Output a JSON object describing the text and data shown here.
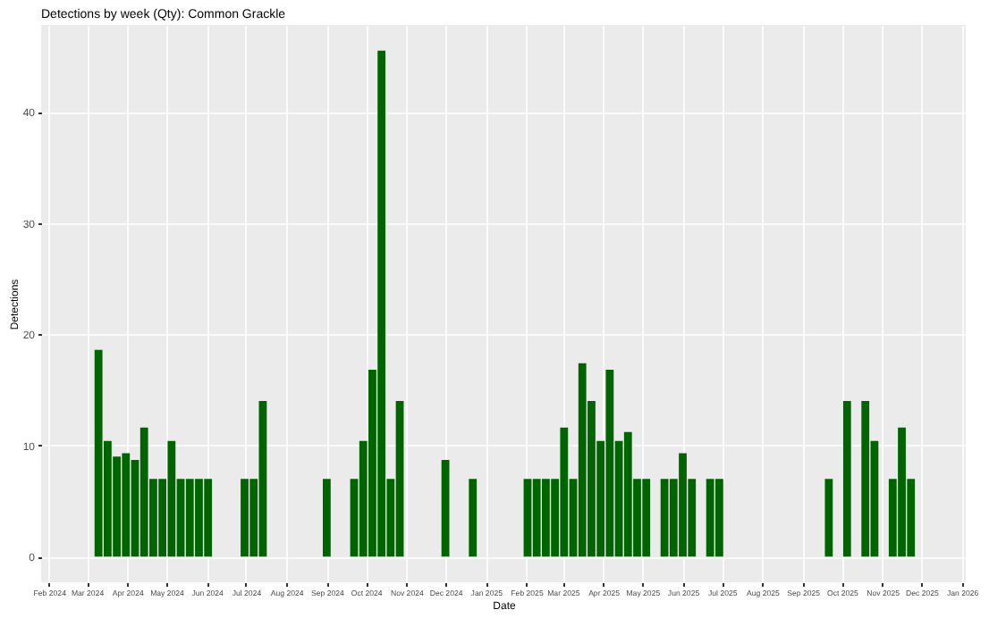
{
  "chart_data": {
    "type": "bar",
    "title": "Detections by week (Qty): Common Grackle",
    "xlabel": "Date",
    "ylabel": "Detections",
    "x": [
      "2024-03-10",
      "2024-03-17",
      "2024-03-24",
      "2024-03-31",
      "2024-04-07",
      "2024-04-14",
      "2024-04-21",
      "2024-04-28",
      "2024-05-05",
      "2024-05-12",
      "2024-05-19",
      "2024-05-26",
      "2024-06-02",
      "2024-06-30",
      "2024-07-07",
      "2024-07-14",
      "2024-09-01",
      "2024-09-22",
      "2024-09-29",
      "2024-10-06",
      "2024-10-13",
      "2024-10-20",
      "2024-10-27",
      "2024-12-01",
      "2024-12-22",
      "2025-02-02",
      "2025-02-09",
      "2025-02-16",
      "2025-02-23",
      "2025-03-02",
      "2025-03-09",
      "2025-03-16",
      "2025-03-23",
      "2025-03-30",
      "2025-04-06",
      "2025-04-13",
      "2025-04-20",
      "2025-04-27",
      "2025-05-04",
      "2025-05-18",
      "2025-05-25",
      "2025-06-01",
      "2025-06-08",
      "2025-06-22",
      "2025-06-29",
      "2025-09-21",
      "2025-10-05",
      "2025-10-19",
      "2025-10-26",
      "2025-11-09",
      "2025-11-16",
      "2025-11-23"
    ],
    "values": [
      18.6,
      10.4,
      9.0,
      9.3,
      8.7,
      11.6,
      7,
      7,
      10.4,
      7,
      7,
      7,
      7,
      7,
      7,
      14,
      7,
      7,
      10.4,
      16.8,
      45.5,
      7,
      14,
      8.7,
      7,
      7,
      7,
      7,
      7,
      11.6,
      7,
      17.4,
      14,
      10.4,
      16.8,
      10.4,
      11.2,
      7,
      7,
      7,
      7,
      9.3,
      7,
      7,
      7,
      7,
      14,
      14,
      10.4,
      7,
      11.6,
      7
    ],
    "color": "#006400",
    "xlim": [
      "2024-01-26",
      "2026-01-04"
    ],
    "xticks": [
      {
        "value": "2024-02",
        "label": "Feb 2024"
      },
      {
        "value": "2024-03",
        "label": "Mar 2024"
      },
      {
        "value": "2024-04",
        "label": "Apr 2024"
      },
      {
        "value": "2024-05",
        "label": "May 2024"
      },
      {
        "value": "2024-06",
        "label": "Jun 2024"
      },
      {
        "value": "2024-07",
        "label": "Jul 2024"
      },
      {
        "value": "2024-08",
        "label": "Aug 2024"
      },
      {
        "value": "2024-09",
        "label": "Sep 2024"
      },
      {
        "value": "2024-10",
        "label": "Oct 2024"
      },
      {
        "value": "2024-11",
        "label": "Nov 2024"
      },
      {
        "value": "2024-12",
        "label": "Dec 2024"
      },
      {
        "value": "2025-01",
        "label": "Jan 2025"
      },
      {
        "value": "2025-02",
        "label": "Feb 2025"
      },
      {
        "value": "2025-03",
        "label": "Mar 2025"
      },
      {
        "value": "2025-04",
        "label": "Apr 2025"
      },
      {
        "value": "2025-05",
        "label": "May 2025"
      },
      {
        "value": "2025-06",
        "label": "Jun 2025"
      },
      {
        "value": "2025-07",
        "label": "Jul 2025"
      },
      {
        "value": "2025-08",
        "label": "Aug 2025"
      },
      {
        "value": "2025-09",
        "label": "Sep 2025"
      },
      {
        "value": "2025-10",
        "label": "Oct 2025"
      },
      {
        "value": "2025-11",
        "label": "Nov 2025"
      },
      {
        "value": "2025-12",
        "label": "Dec 2025"
      },
      {
        "value": "2026-01",
        "label": "Jan 2026"
      }
    ],
    "ylim": [
      -2.3,
      47.8
    ],
    "yticks": [
      0,
      10,
      20,
      30,
      40
    ],
    "grid": true
  }
}
